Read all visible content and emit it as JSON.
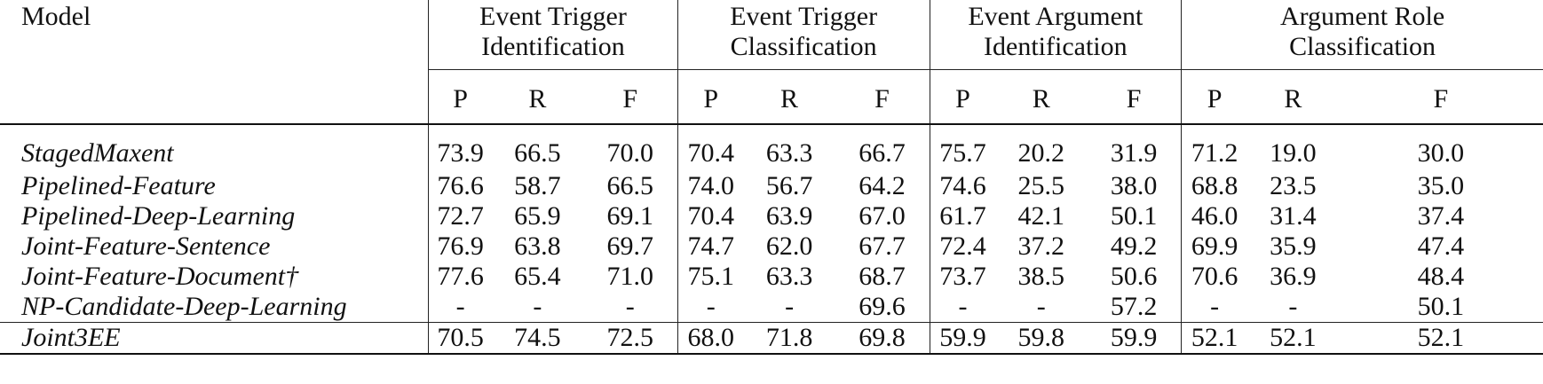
{
  "table": {
    "model_header": "Model",
    "groups": [
      {
        "line1": "Event Trigger",
        "line2": "Identification"
      },
      {
        "line1": "Event Trigger",
        "line2": "Classification"
      },
      {
        "line1": "Event Argument",
        "line2": "Identification"
      },
      {
        "line1": "Argument Role",
        "line2": "Classification"
      }
    ],
    "metrics": [
      "P",
      "R",
      "F",
      "P",
      "R",
      "F",
      "P",
      "R",
      "F",
      "P",
      "R",
      "F"
    ],
    "rows": [
      {
        "model": "StagedMaxent",
        "values": [
          "73.9",
          "66.5",
          "70.0",
          "70.4",
          "63.3",
          "66.7",
          "75.7",
          "20.2",
          "31.9",
          "71.2",
          "19.0",
          "30.0"
        ]
      },
      {
        "model": "Pipelined-Feature",
        "values": [
          "76.6",
          "58.7",
          "66.5",
          "74.0",
          "56.7",
          "64.2",
          "74.6",
          "25.5",
          "38.0",
          "68.8",
          "23.5",
          "35.0"
        ]
      },
      {
        "model": "Pipelined-Deep-Learning",
        "values": [
          "72.7",
          "65.9",
          "69.1",
          "70.4",
          "63.9",
          "67.0",
          "61.7",
          "42.1",
          "50.1",
          "46.0",
          "31.4",
          "37.4"
        ]
      },
      {
        "model": "Joint-Feature-Sentence",
        "values": [
          "76.9",
          "63.8",
          "69.7",
          "74.7",
          "62.0",
          "67.7",
          "72.4",
          "37.2",
          "49.2",
          "69.9",
          "35.9",
          "47.4"
        ]
      },
      {
        "model": "Joint-Feature-Document†",
        "values": [
          "77.6",
          "65.4",
          "71.0",
          "75.1",
          "63.3",
          "68.7",
          "73.7",
          "38.5",
          "50.6",
          "70.6",
          "36.9",
          "48.4"
        ]
      },
      {
        "model": "NP-Candidate-Deep-Learning",
        "values": [
          "-",
          "-",
          "-",
          "-",
          "-",
          "69.6",
          "-",
          "-",
          "57.2",
          "-",
          "-",
          "50.1"
        ]
      },
      {
        "model": "Joint3EE",
        "values": [
          "70.5",
          "74.5",
          "72.5",
          "68.0",
          "71.8",
          "69.8",
          "59.9",
          "59.8",
          "59.9",
          "52.1",
          "52.1",
          "52.1"
        ],
        "bold_columns": [
          2,
          5,
          8,
          11
        ]
      }
    ]
  }
}
